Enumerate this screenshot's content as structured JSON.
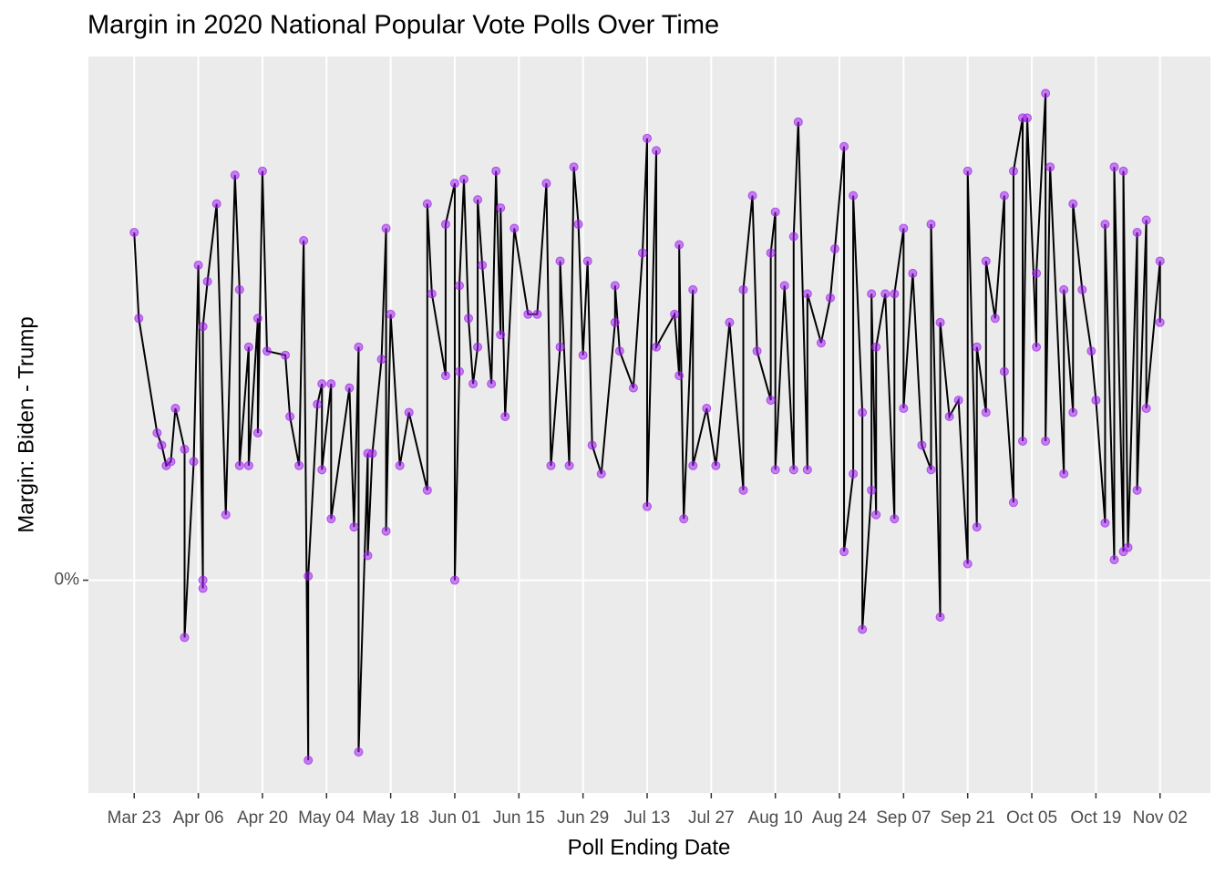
{
  "chart_data": {
    "type": "line_points",
    "title": "Margin in 2020 National Popular Vote Polls Over Time",
    "xlabel": "Poll Ending Date",
    "ylabel": "Margin: Biden - Trump",
    "xlim": [
      "Mar 13",
      "Nov 13"
    ],
    "xticks": [
      "Mar 23",
      "Apr 06",
      "Apr 20",
      "May 04",
      "May 18",
      "Jun 01",
      "Jun 15",
      "Jun 29",
      "Jul 13",
      "Jul 27",
      "Aug 10",
      "Aug 24",
      "Sep 07",
      "Sep 21",
      "Oct 05",
      "Oct 19",
      "Nov 02"
    ],
    "ylim": [
      -5.2,
      12.8
    ],
    "yticks": [
      {
        "value": 0,
        "label": "0%"
      }
    ],
    "grid": true,
    "point_color": "#a020f0",
    "line_color": "#000000",
    "x": [
      "Mar 23",
      "Mar 24",
      "Mar 28",
      "Mar 29",
      "Mar 30",
      "Mar 31",
      "Apr 01",
      "Apr 03",
      "Apr 03",
      "Apr 05",
      "Apr 06",
      "Apr 07",
      "Apr 07",
      "Apr 07",
      "Apr 08",
      "Apr 10",
      "Apr 12",
      "Apr 14",
      "Apr 15",
      "Apr 15",
      "Apr 17",
      "Apr 17",
      "Apr 19",
      "Apr 19",
      "Apr 20",
      "Apr 21",
      "Apr 25",
      "Apr 26",
      "Apr 28",
      "Apr 29",
      "Apr 30",
      "Apr 30",
      "May 02",
      "May 03",
      "May 03",
      "May 05",
      "May 05",
      "May 09",
      "May 10",
      "May 11",
      "May 11",
      "May 13",
      "May 13",
      "May 14",
      "May 16",
      "May 17",
      "May 17",
      "May 18",
      "May 20",
      "May 22",
      "May 26",
      "May 26",
      "May 27",
      "May 30",
      "May 30",
      "Jun 01",
      "Jun 01",
      "Jun 02",
      "Jun 02",
      "Jun 03",
      "Jun 04",
      "Jun 05",
      "Jun 06",
      "Jun 06",
      "Jun 07",
      "Jun 09",
      "Jun 10",
      "Jun 11",
      "Jun 11",
      "Jun 12",
      "Jun 14",
      "Jun 17",
      "Jun 19",
      "Jun 21",
      "Jun 22",
      "Jun 24",
      "Jun 24",
      "Jun 26",
      "Jun 27",
      "Jun 28",
      "Jun 29",
      "Jun 30",
      "Jul 01",
      "Jul 03",
      "Jul 06",
      "Jul 06",
      "Jul 07",
      "Jul 10",
      "Jul 12",
      "Jul 13",
      "Jul 13",
      "Jul 15",
      "Jul 15",
      "Jul 19",
      "Jul 20",
      "Jul 20",
      "Jul 21",
      "Jul 23",
      "Jul 23",
      "Jul 26",
      "Jul 28",
      "Jul 31",
      "Aug 03",
      "Aug 03",
      "Aug 05",
      "Aug 06",
      "Aug 09",
      "Aug 09",
      "Aug 10",
      "Aug 10",
      "Aug 12",
      "Aug 14",
      "Aug 14",
      "Aug 15",
      "Aug 17",
      "Aug 17",
      "Aug 20",
      "Aug 22",
      "Aug 23",
      "Aug 25",
      "Aug 25",
      "Aug 27",
      "Aug 27",
      "Aug 29",
      "Aug 29",
      "Aug 31",
      "Aug 31",
      "Sep 01",
      "Sep 01",
      "Sep 03",
      "Sep 05",
      "Sep 05",
      "Sep 07",
      "Sep 07",
      "Sep 09",
      "Sep 11",
      "Sep 13",
      "Sep 13",
      "Sep 15",
      "Sep 15",
      "Sep 17",
      "Sep 19",
      "Sep 21",
      "Sep 21",
      "Sep 23",
      "Sep 23",
      "Sep 25",
      "Sep 25",
      "Sep 27",
      "Sep 29",
      "Sep 29",
      "Oct 01",
      "Oct 01",
      "Oct 03",
      "Oct 03",
      "Oct 04",
      "Oct 06",
      "Oct 06",
      "Oct 08",
      "Oct 08",
      "Oct 09",
      "Oct 12",
      "Oct 12",
      "Oct 14",
      "Oct 14",
      "Oct 16",
      "Oct 18",
      "Oct 19",
      "Oct 21",
      "Oct 21",
      "Oct 23",
      "Oct 23",
      "Oct 25",
      "Oct 25",
      "Oct 26",
      "Oct 28",
      "Oct 28",
      "Oct 30",
      "Oct 30",
      "Nov 02",
      "Nov 02"
    ],
    "values": [
      8.5,
      6.4,
      3.6,
      3.3,
      2.8,
      2.9,
      4.2,
      3.2,
      -1.4,
      2.9,
      7.7,
      0,
      -0.2,
      6.2,
      7.3,
      9.2,
      1.6,
      9.9,
      7.1,
      2.8,
      5.7,
      2.8,
      6.4,
      3.6,
      10.0,
      5.6,
      5.5,
      4.0,
      2.8,
      8.3,
      -4.4,
      0.1,
      4.3,
      4.8,
      2.7,
      4.8,
      1.5,
      4.7,
      1.3,
      5.7,
      -4.2,
      3.1,
      0.6,
      3.1,
      5.4,
      8.6,
      1.2,
      6.5,
      2.8,
      4.1,
      2.2,
      9.2,
      7.0,
      5.0,
      8.7,
      9.7,
      0,
      5.1,
      7.2,
      9.8,
      6.4,
      4.8,
      5.7,
      9.3,
      7.7,
      4.8,
      10.0,
      6.0,
      9.1,
      4.0,
      8.6,
      6.5,
      6.5,
      9.7,
      2.8,
      5.7,
      7.8,
      2.8,
      10.1,
      8.7,
      5.5,
      7.8,
      3.3,
      2.6,
      6.3,
      7.2,
      5.6,
      4.7,
      8.0,
      10.8,
      1.8,
      10.5,
      5.7,
      6.5,
      5.0,
      8.2,
      1.5,
      7.1,
      2.8,
      4.2,
      2.8,
      6.3,
      2.2,
      7.1,
      9.4,
      5.6,
      4.4,
      8.0,
      9.0,
      2.7,
      7.2,
      2.7,
      8.4,
      11.2,
      2.7,
      7.0,
      5.8,
      6.9,
      8.1,
      10.6,
      0.7,
      2.6,
      9.4,
      4.1,
      -1.2,
      2.2,
      7.0,
      1.6,
      5.7,
      7.0,
      1.5,
      7.0,
      8.6,
      4.2,
      7.5,
      3.3,
      2.7,
      8.7,
      -0.9,
      6.3,
      4.0,
      4.4,
      0.4,
      10.0,
      1.3,
      5.7,
      4.1,
      7.8,
      6.4,
      9.4,
      5.1,
      1.9,
      10.0,
      11.3,
      3.4,
      11.3,
      5.7,
      7.5,
      11.9,
      3.4,
      10.1,
      2.6,
      7.1,
      4.1,
      9.2,
      7.1,
      5.6,
      4.4,
      1.4,
      8.7,
      0.5,
      10.1,
      0.7,
      10.0,
      0.8,
      8.5,
      2.2,
      8.8,
      4.2,
      7.8,
      6.3
    ]
  }
}
